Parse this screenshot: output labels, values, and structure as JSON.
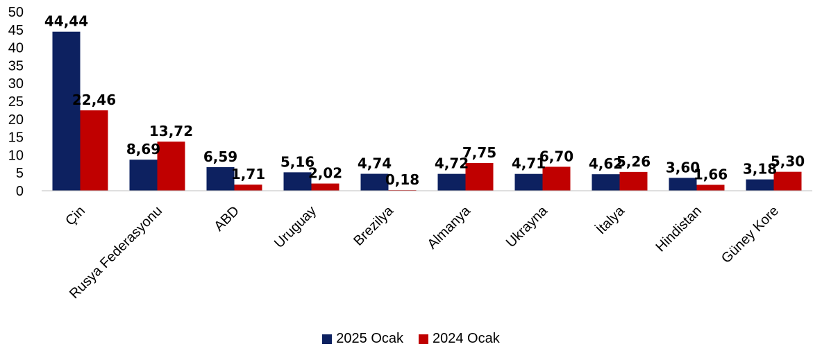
{
  "chart_data": {
    "type": "bar",
    "categories": [
      "Çin",
      "Rusya Federasyonu",
      "ABD",
      "Uruguay",
      "Brezilya",
      "Almanya",
      "Ukrayna",
      "İtalya",
      "Hindistan",
      "Güney Kore"
    ],
    "series": [
      {
        "name": "2025 Ocak",
        "color": "#0d2160",
        "values": [
          44.44,
          8.69,
          6.59,
          5.16,
          4.74,
          4.72,
          4.71,
          4.62,
          3.6,
          3.18
        ],
        "labels": [
          "44,44",
          "8,69",
          "6,59",
          "5,16",
          "4,74",
          "4,72",
          "4,71",
          "4,62",
          "3,60",
          "3,18"
        ]
      },
      {
        "name": "2024 Ocak",
        "color": "#c00000",
        "values": [
          22.46,
          13.72,
          1.71,
          2.02,
          0.18,
          7.75,
          6.7,
          5.26,
          1.66,
          5.3
        ],
        "labels": [
          "22,46",
          "13,72",
          "1,71",
          "2,02",
          "0,18",
          "7,75",
          "6,70",
          "5,26",
          "1,66",
          "5,30"
        ]
      }
    ],
    "yticks": [
      "0",
      "5",
      "10",
      "15",
      "20",
      "25",
      "30",
      "35",
      "40",
      "45",
      "50"
    ],
    "ylim": [
      0,
      50
    ],
    "title": "",
    "xlabel": "",
    "ylabel": "",
    "grid": false,
    "legend_position": "bottom"
  }
}
